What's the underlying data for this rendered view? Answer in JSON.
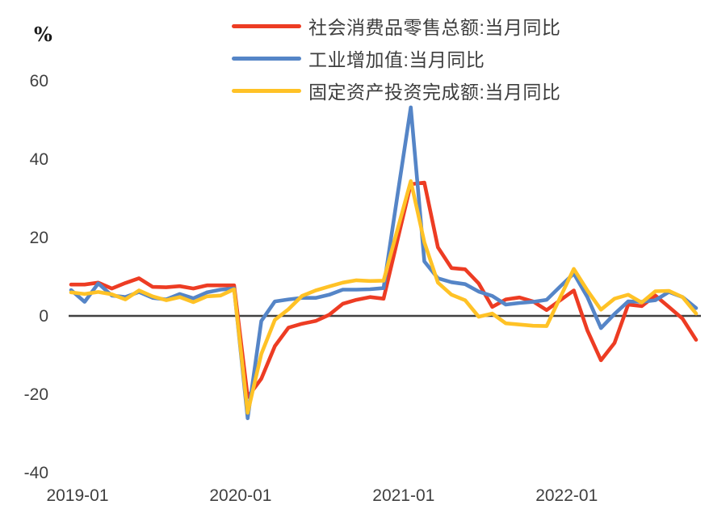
{
  "chart_data": {
    "type": "line",
    "title": "",
    "ylabel_unit": "%",
    "ylim": [
      -40,
      60
    ],
    "yticks": [
      60,
      40,
      20,
      0,
      -20,
      -40
    ],
    "grid": false,
    "legend_position": "top-center",
    "axis_line_color": "#404040",
    "x": [
      "2019-01",
      "2019-02",
      "2019-03",
      "2019-04",
      "2019-05",
      "2019-06",
      "2019-07",
      "2019-08",
      "2019-09",
      "2019-10",
      "2019-11",
      "2019-12",
      "2020-01",
      "2020-02",
      "2020-03",
      "2020-04",
      "2020-05",
      "2020-06",
      "2020-07",
      "2020-08",
      "2020-09",
      "2020-10",
      "2020-11",
      "2020-12",
      "2021-01",
      "2021-02",
      "2021-03",
      "2021-04",
      "2021-05",
      "2021-06",
      "2021-07",
      "2021-08",
      "2021-09",
      "2021-10",
      "2021-11",
      "2021-12",
      "2022-01",
      "2022-02",
      "2022-03",
      "2022-04",
      "2022-05",
      "2022-06",
      "2022-07",
      "2022-08",
      "2022-09",
      "2022-10",
      "2022-11"
    ],
    "x_tick_labels": [
      "2019-01",
      "2020-01",
      "2021-01",
      "2022-01"
    ],
    "series": [
      {
        "name": "社会消费品零售总额:当月同比",
        "color": "#ED3C23",
        "values": [
          8.2,
          8.2,
          8.7,
          7.2,
          8.6,
          9.8,
          7.6,
          7.5,
          7.8,
          7.2,
          8.0,
          8.0,
          8.0,
          -20.5,
          -15.8,
          -7.5,
          -2.8,
          -1.8,
          -1.1,
          0.5,
          3.3,
          4.3,
          5.0,
          4.6,
          19.2,
          33.8,
          34.2,
          17.7,
          12.4,
          12.1,
          8.5,
          2.5,
          4.4,
          4.9,
          3.9,
          1.7,
          4.2,
          6.7,
          -3.5,
          -11.1,
          -6.7,
          3.1,
          2.7,
          5.4,
          2.5,
          -0.5,
          -5.9
        ]
      },
      {
        "name": "工业增加值:当月同比",
        "color": "#5585C7",
        "values": [
          6.8,
          3.8,
          8.5,
          5.4,
          5.0,
          6.3,
          4.8,
          4.4,
          5.8,
          4.7,
          6.2,
          6.9,
          7.2,
          -25.9,
          -1.1,
          3.9,
          4.4,
          4.8,
          4.8,
          5.6,
          6.9,
          6.9,
          7.0,
          7.3,
          30.4,
          53.4,
          14.1,
          9.8,
          8.8,
          8.3,
          6.4,
          5.3,
          3.1,
          3.5,
          3.8,
          4.3,
          7.7,
          11.0,
          5.0,
          -2.9,
          0.7,
          3.9,
          3.8,
          4.2,
          6.3,
          5.0,
          2.2
        ]
      },
      {
        "name": "固定资产投资完成额:当月同比",
        "color": "#FFC226",
        "values": [
          6.2,
          5.8,
          6.3,
          5.7,
          4.4,
          6.7,
          5.2,
          4.2,
          5.0,
          3.7,
          5.2,
          5.4,
          7.0,
          -24.5,
          -9.5,
          -0.8,
          1.9,
          5.3,
          6.7,
          7.7,
          8.7,
          9.3,
          9.1,
          9.2,
          21.9,
          34.6,
          19.0,
          8.7,
          5.6,
          4.2,
          0.0,
          0.8,
          -1.7,
          -2.0,
          -2.3,
          -2.4,
          4.9,
          12.2,
          6.7,
          1.8,
          4.6,
          5.6,
          3.6,
          6.5,
          6.6,
          5.0,
          0.8
        ]
      }
    ]
  }
}
